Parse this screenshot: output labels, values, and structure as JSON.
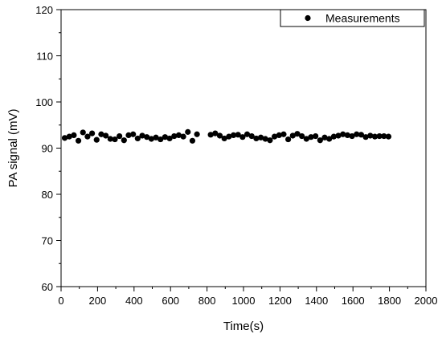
{
  "chart_data": {
    "type": "scatter",
    "title": "",
    "xlabel": "Time(s)",
    "ylabel": "PA signal (mV)",
    "xlim": [
      0,
      2000
    ],
    "ylim": [
      60,
      120
    ],
    "xticks": [
      0,
      200,
      400,
      600,
      800,
      1000,
      1200,
      1400,
      1600,
      1800,
      2000
    ],
    "yticks": [
      60,
      70,
      80,
      90,
      100,
      110,
      120
    ],
    "grid": false,
    "legend_position": "top-right",
    "marker_color": "#000000",
    "series": [
      {
        "name": "Measurements",
        "x": [
          20,
          45,
          70,
          95,
          120,
          145,
          170,
          195,
          220,
          245,
          270,
          295,
          320,
          345,
          370,
          395,
          420,
          445,
          470,
          495,
          520,
          545,
          570,
          595,
          620,
          645,
          670,
          695,
          720,
          745,
          820,
          845,
          870,
          895,
          920,
          945,
          970,
          995,
          1020,
          1045,
          1070,
          1095,
          1120,
          1145,
          1170,
          1195,
          1220,
          1245,
          1270,
          1295,
          1320,
          1345,
          1370,
          1395,
          1420,
          1445,
          1470,
          1495,
          1520,
          1545,
          1570,
          1595,
          1620,
          1645,
          1670,
          1695,
          1720,
          1745,
          1770,
          1795
        ],
        "y": [
          92.2,
          92.5,
          92.8,
          91.6,
          93.4,
          92.5,
          93.2,
          91.8,
          93.0,
          92.7,
          92.0,
          91.9,
          92.6,
          91.7,
          92.8,
          93.0,
          92.1,
          92.7,
          92.4,
          92.0,
          92.3,
          91.9,
          92.4,
          92.1,
          92.6,
          92.8,
          92.5,
          93.5,
          91.6,
          93.0,
          92.9,
          93.2,
          92.7,
          92.1,
          92.5,
          92.8,
          92.9,
          92.4,
          93.0,
          92.6,
          92.1,
          92.3,
          92.0,
          91.7,
          92.5,
          92.8,
          93.0,
          91.9,
          92.7,
          93.1,
          92.6,
          92.0,
          92.4,
          92.6,
          91.7,
          92.3,
          92.0,
          92.5,
          92.7,
          93.0,
          92.8,
          92.6,
          93.0,
          92.9,
          92.4,
          92.7,
          92.5,
          92.6,
          92.6,
          92.5
        ]
      }
    ]
  }
}
